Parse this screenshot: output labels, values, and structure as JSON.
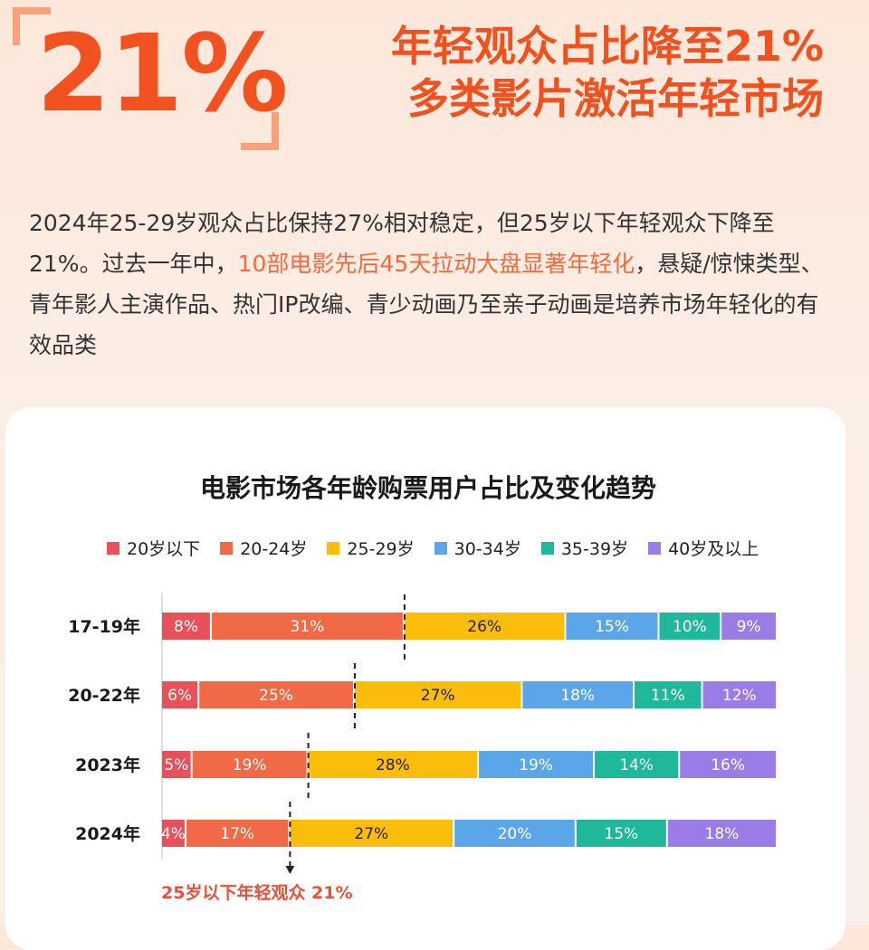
{
  "header": {
    "big_number": "21%",
    "headline_line1": "年轻观众占比降至21%",
    "headline_line2": "多类影片激活年轻市场"
  },
  "intro": {
    "part1": "2024年25-29岁观众占比保持27%相对稳定，但25岁以下年轻观众下降至21%。过去一年中，",
    "highlight": "10部电影先后45天拉动大盘显著年轻化",
    "part2": "，悬疑/惊悚类型、青年影人主演作品、热门IP改编、青少动画乃至亲子动画是培养市场年轻化的有效品类"
  },
  "chart_data": {
    "type": "bar",
    "orientation": "horizontal",
    "stacked": true,
    "title": "电影市场各年龄购票用户占比及变化趋势",
    "categories": [
      "17-19年",
      "20-22年",
      "2023年",
      "2024年"
    ],
    "series": [
      {
        "name": "20岁以下",
        "color": "#e8515a",
        "values": [
          8,
          6,
          5,
          4
        ]
      },
      {
        "name": "20-24岁",
        "color": "#f26a45",
        "values": [
          31,
          25,
          19,
          17
        ]
      },
      {
        "name": "25-29岁",
        "color": "#fbbd0c",
        "values": [
          26,
          27,
          28,
          27
        ]
      },
      {
        "name": "30-34岁",
        "color": "#5aa6e8",
        "values": [
          15,
          18,
          19,
          20
        ]
      },
      {
        "name": "35-39岁",
        "color": "#1fb89a",
        "values": [
          10,
          11,
          14,
          15
        ]
      },
      {
        "name": "40岁及以上",
        "color": "#9b7be6",
        "values": [
          9,
          12,
          16,
          18
        ]
      }
    ],
    "value_suffix": "%",
    "legend_position": "top",
    "annotation": "25岁以下年轻观众 21%"
  }
}
